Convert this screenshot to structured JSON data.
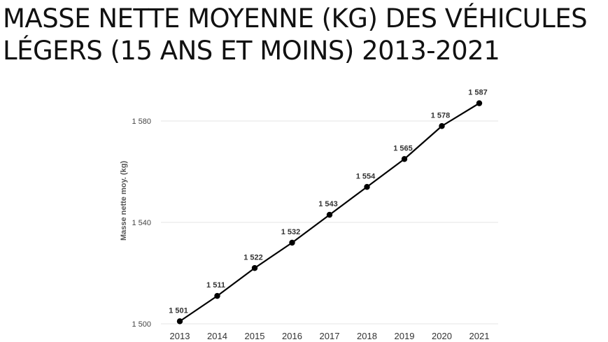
{
  "title_lines": [
    "MASSE NETTE MOYENNE (KG) DES VÉHICULES",
    "LÉGERS (15 ANS ET MOINS) 2013-2021"
  ],
  "chart_data": {
    "type": "line",
    "title": "MASSE NETTE MOYENNE (KG) DES VÉHICULES LÉGERS (15 ANS ET MOINS) 2013-2021",
    "xlabel": "",
    "ylabel": "Masse nette moy. (kg)",
    "ylim": [
      1500,
      1580
    ],
    "yticks": [
      {
        "value": 1500,
        "label": "1 500"
      },
      {
        "value": 1540,
        "label": "1 540"
      },
      {
        "value": 1580,
        "label": "1 580"
      }
    ],
    "grid": true,
    "categories": [
      "2013",
      "2014",
      "2015",
      "2016",
      "2017",
      "2018",
      "2019",
      "2020",
      "2021"
    ],
    "series": [
      {
        "values": [
          1501,
          1511,
          1522,
          1532,
          1543,
          1554,
          1565,
          1578,
          1587
        ],
        "labels": [
          "1 501",
          "1 511",
          "1 522",
          "1 532",
          "1 543",
          "1 554",
          "1 565",
          "1 578",
          "1 587"
        ],
        "color": "#000000"
      }
    ],
    "gridline_color": "#e6e6e6"
  }
}
